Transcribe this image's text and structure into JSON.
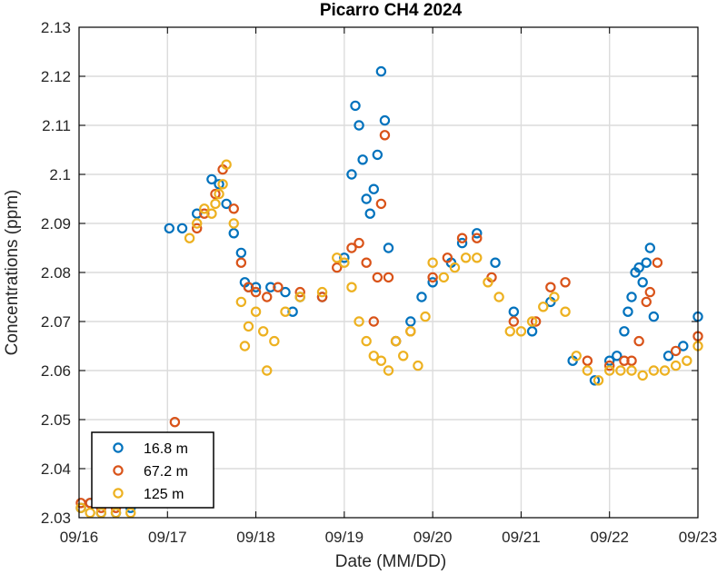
{
  "chart_data": {
    "type": "scatter",
    "title": "Picarro CH4 2024",
    "xlabel": "Date (MM/DD)",
    "ylabel": "Concentrations (ppm)",
    "x_ticks": [
      "09/16",
      "09/17",
      "09/18",
      "09/19",
      "09/20",
      "09/21",
      "09/22",
      "09/23"
    ],
    "xlim": [
      "09/16",
      "09/23"
    ],
    "ylim": [
      2.03,
      2.13
    ],
    "y_ticks": [
      2.03,
      2.04,
      2.05,
      2.06,
      2.07,
      2.08,
      2.09,
      2.1,
      2.11,
      2.12,
      2.13
    ],
    "y_tick_labels": [
      "2.03",
      "2.04",
      "2.05",
      "2.06",
      "2.07",
      "2.08",
      "2.09",
      "2.1",
      "2.11",
      "2.12",
      "2.13"
    ],
    "grid": true,
    "legend_position": "bottom-left",
    "series": [
      {
        "name": "16.8 m",
        "color": "#0072BD",
        "x": [
          "09/16 00:30",
          "09/16 03:00",
          "09/16 06:00",
          "09/16 10:00",
          "09/16 14:00",
          "09/17 00:30",
          "09/17 04:00",
          "09/17 08:00",
          "09/17 12:00",
          "09/17 14:00",
          "09/17 16:00",
          "09/17 18:00",
          "09/17 20:00",
          "09/17 21:00",
          "09/17 22:00",
          "09/18 00:00",
          "09/18 04:00",
          "09/18 08:00",
          "09/18 10:00",
          "09/18 12:00",
          "09/18 18:00",
          "09/19 00:00",
          "09/19 02:00",
          "09/19 03:00",
          "09/19 04:00",
          "09/19 05:00",
          "09/19 06:00",
          "09/19 07:00",
          "09/19 08:00",
          "09/19 09:00",
          "09/19 10:00",
          "09/19 11:00",
          "09/19 12:00",
          "09/19 14:00",
          "09/19 18:00",
          "09/19 21:00",
          "09/20 00:00",
          "09/20 05:00",
          "09/20 08:00",
          "09/20 12:00",
          "09/20 17:00",
          "09/20 22:00",
          "09/21 03:00",
          "09/21 08:00",
          "09/21 14:00",
          "09/21 20:00",
          "09/22 00:00",
          "09/22 02:00",
          "09/22 04:00",
          "09/22 05:00",
          "09/22 06:00",
          "09/22 07:00",
          "09/22 08:00",
          "09/22 09:00",
          "09/22 10:00",
          "09/22 11:00",
          "09/22 12:00",
          "09/22 16:00",
          "09/22 20:00",
          "09/23 00:00"
        ],
        "y": [
          2.032,
          2.033,
          2.031,
          2.031,
          2.032,
          2.089,
          2.089,
          2.092,
          2.099,
          2.098,
          2.094,
          2.088,
          2.084,
          2.078,
          2.077,
          2.077,
          2.077,
          2.076,
          2.072,
          2.075,
          2.075,
          2.083,
          2.1,
          2.114,
          2.11,
          2.103,
          2.095,
          2.092,
          2.097,
          2.104,
          2.121,
          2.111,
          2.085,
          2.066,
          2.07,
          2.075,
          2.078,
          2.082,
          2.086,
          2.088,
          2.082,
          2.072,
          2.068,
          2.074,
          2.062,
          2.058,
          2.062,
          2.063,
          2.068,
          2.072,
          2.075,
          2.08,
          2.081,
          2.078,
          2.082,
          2.085,
          2.071,
          2.063,
          2.065,
          2.071
        ]
      },
      {
        "name": "67.2 m",
        "color": "#D95319",
        "x": [
          "09/16 00:30",
          "09/16 03:00",
          "09/16 06:00",
          "09/16 10:00",
          "09/16 14:00",
          "09/17 02:00",
          "09/17 08:00",
          "09/17 10:00",
          "09/17 13:00",
          "09/17 15:00",
          "09/17 18:00",
          "09/17 20:00",
          "09/17 22:00",
          "09/18 00:00",
          "09/18 03:00",
          "09/18 06:00",
          "09/18 12:00",
          "09/18 18:00",
          "09/18 22:00",
          "09/19 02:00",
          "09/19 04:00",
          "09/19 06:00",
          "09/19 08:00",
          "09/19 09:00",
          "09/19 10:00",
          "09/19 11:00",
          "09/19 12:00",
          "09/19 14:00",
          "09/19 18:00",
          "09/20 00:00",
          "09/20 04:00",
          "09/20 08:00",
          "09/20 12:00",
          "09/20 16:00",
          "09/20 22:00",
          "09/21 04:00",
          "09/21 08:00",
          "09/21 12:00",
          "09/21 18:00",
          "09/22 00:00",
          "09/22 04:00",
          "09/22 06:00",
          "09/22 08:00",
          "09/22 10:00",
          "09/22 11:00",
          "09/22 13:00",
          "09/22 18:00",
          "09/23 00:00"
        ],
        "y": [
          2.033,
          2.033,
          2.032,
          2.032,
          2.033,
          2.0495,
          2.089,
          2.092,
          2.096,
          2.101,
          2.093,
          2.082,
          2.077,
          2.076,
          2.075,
          2.077,
          2.076,
          2.075,
          2.081,
          2.085,
          2.086,
          2.082,
          2.07,
          2.079,
          2.094,
          2.108,
          2.079,
          2.066,
          2.068,
          2.079,
          2.083,
          2.087,
          2.087,
          2.079,
          2.07,
          2.07,
          2.077,
          2.078,
          2.062,
          2.061,
          2.062,
          2.062,
          2.066,
          2.074,
          2.076,
          2.082,
          2.064,
          2.067
        ]
      },
      {
        "name": "125 m",
        "color": "#EDB120",
        "x": [
          "09/16 00:30",
          "09/16 03:00",
          "09/16 06:00",
          "09/16 10:00",
          "09/16 14:00",
          "09/17 06:00",
          "09/17 08:00",
          "09/17 10:00",
          "09/17 12:00",
          "09/17 13:00",
          "09/17 14:00",
          "09/17 15:00",
          "09/17 16:00",
          "09/17 18:00",
          "09/17 20:00",
          "09/17 21:00",
          "09/17 22:00",
          "09/18 00:00",
          "09/18 02:00",
          "09/18 03:00",
          "09/18 05:00",
          "09/18 08:00",
          "09/18 12:00",
          "09/18 18:00",
          "09/18 22:00",
          "09/19 00:00",
          "09/19 02:00",
          "09/19 04:00",
          "09/19 06:00",
          "09/19 08:00",
          "09/19 10:00",
          "09/19 12:00",
          "09/19 14:00",
          "09/19 16:00",
          "09/19 18:00",
          "09/19 20:00",
          "09/19 22:00",
          "09/20 00:00",
          "09/20 03:00",
          "09/20 06:00",
          "09/20 09:00",
          "09/20 12:00",
          "09/20 15:00",
          "09/20 18:00",
          "09/20 21:00",
          "09/21 00:00",
          "09/21 03:00",
          "09/21 06:00",
          "09/21 09:00",
          "09/21 12:00",
          "09/21 15:00",
          "09/21 18:00",
          "09/21 21:00",
          "09/22 00:00",
          "09/22 03:00",
          "09/22 06:00",
          "09/22 09:00",
          "09/22 12:00",
          "09/22 15:00",
          "09/22 18:00",
          "09/22 21:00",
          "09/23 00:00"
        ],
        "y": [
          2.032,
          2.031,
          2.031,
          2.031,
          2.031,
          2.087,
          2.09,
          2.093,
          2.092,
          2.094,
          2.096,
          2.098,
          2.102,
          2.09,
          2.074,
          2.065,
          2.069,
          2.072,
          2.068,
          2.06,
          2.066,
          2.072,
          2.075,
          2.076,
          2.083,
          2.082,
          2.077,
          2.07,
          2.066,
          2.063,
          2.062,
          2.06,
          2.066,
          2.063,
          2.068,
          2.061,
          2.071,
          2.082,
          2.079,
          2.081,
          2.083,
          2.083,
          2.078,
          2.075,
          2.068,
          2.068,
          2.07,
          2.073,
          2.075,
          2.072,
          2.063,
          2.06,
          2.058,
          2.06,
          2.06,
          2.06,
          2.059,
          2.06,
          2.06,
          2.061,
          2.062,
          2.065
        ]
      }
    ]
  }
}
